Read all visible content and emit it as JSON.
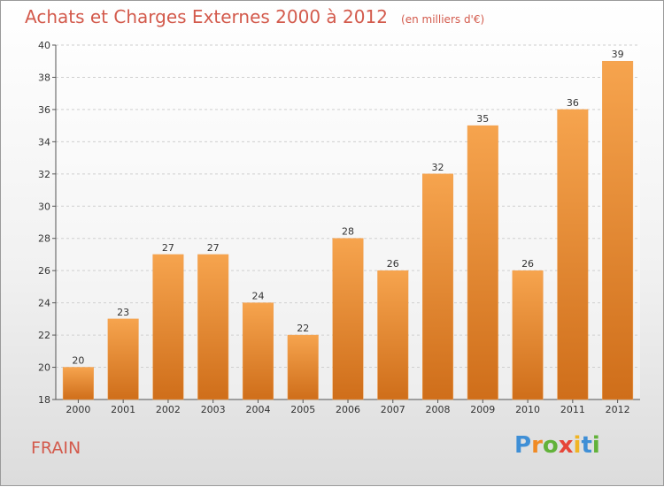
{
  "chart_data": {
    "type": "bar",
    "title": "Achats et Charges Externes 2000 à 2012",
    "subtitle": "(en milliers d'€)",
    "categories": [
      "2000",
      "2001",
      "2002",
      "2003",
      "2004",
      "2005",
      "2006",
      "2007",
      "2008",
      "2009",
      "2010",
      "2011",
      "2012"
    ],
    "values": [
      20,
      23,
      27,
      27,
      24,
      22,
      28,
      26,
      32,
      35,
      26,
      36,
      39
    ],
    "ylim": [
      18,
      40
    ],
    "yticks": [
      18,
      20,
      22,
      24,
      26,
      28,
      30,
      32,
      34,
      36,
      38,
      40
    ],
    "grid": true,
    "colors": {
      "bar_top": "#f6a44e",
      "bar_bottom": "#cf6e1a",
      "title": "#d35a4c"
    }
  },
  "commune": "FRAIN",
  "logo": {
    "text": "Proxiti",
    "letters": [
      {
        "ch": "P",
        "color": "#3f8fd6"
      },
      {
        "ch": "r",
        "color": "#f08a24"
      },
      {
        "ch": "o",
        "color": "#62b23a"
      },
      {
        "ch": "x",
        "color": "#e64638"
      },
      {
        "ch": "i",
        "color": "#f0b424"
      },
      {
        "ch": "t",
        "color": "#3f8fd6"
      },
      {
        "ch": "i",
        "color": "#62b23a"
      }
    ]
  }
}
